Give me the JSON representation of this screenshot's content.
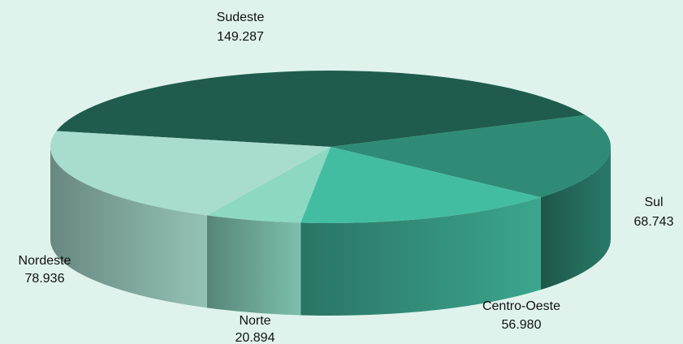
{
  "chart_data": {
    "type": "pie",
    "style": "3d",
    "title": "",
    "slices": [
      {
        "key": "sudeste",
        "label": "Sudeste",
        "value": 149287,
        "value_label": "149.287",
        "color": "#1f5c4d"
      },
      {
        "key": "sul",
        "label": "Sul",
        "value": 68743,
        "value_label": "68.743",
        "color": "#2f8b76"
      },
      {
        "key": "centro_oeste",
        "label": "Centro-Oeste",
        "value": 56980,
        "value_label": "56.980",
        "color": "#43bda1"
      },
      {
        "key": "norte",
        "label": "Norte",
        "value": 20894,
        "value_label": "20.894",
        "color": "#8dd8c3"
      },
      {
        "key": "nordeste",
        "label": "Nordeste",
        "value": 78936,
        "value_label": "78.936",
        "color": "#a8dccf"
      }
    ],
    "background": "#dff3ec"
  }
}
